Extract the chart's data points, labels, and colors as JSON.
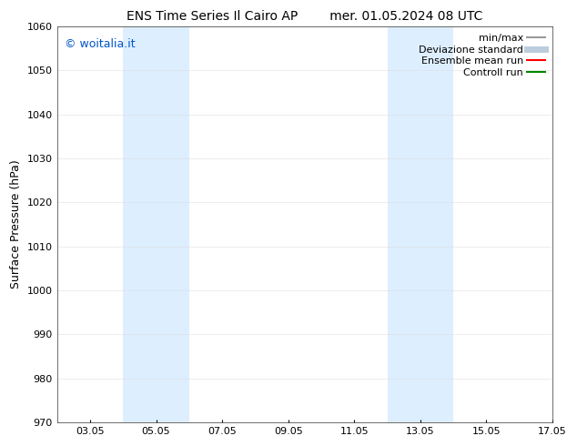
{
  "title_left": "ENS Time Series Il Cairo AP",
  "title_right": "mer. 01.05.2024 08 UTC",
  "ylabel": "Surface Pressure (hPa)",
  "ylim": [
    970,
    1060
  ],
  "yticks": [
    970,
    980,
    990,
    1000,
    1010,
    1020,
    1030,
    1040,
    1050,
    1060
  ],
  "xlim": [
    0,
    15
  ],
  "xtick_labels": [
    "03.05",
    "05.05",
    "07.05",
    "09.05",
    "11.05",
    "13.05",
    "15.05",
    "17.05"
  ],
  "xtick_positions": [
    1.0,
    3.0,
    5.0,
    7.0,
    9.0,
    11.0,
    13.0,
    15.0
  ],
  "shaded_bands": [
    {
      "start": 2.0,
      "end": 4.0,
      "color": "#ddeeff"
    },
    {
      "start": 10.0,
      "end": 12.0,
      "color": "#ddeeff"
    }
  ],
  "watermark_text": "© woitalia.it",
  "watermark_color": "#0055cc",
  "legend_items": [
    {
      "label": "min/max",
      "color": "#999999",
      "lw": 1.5
    },
    {
      "label": "Deviazione standard",
      "color": "#bbccdd",
      "lw": 5
    },
    {
      "label": "Ensemble mean run",
      "color": "#ff0000",
      "lw": 1.5
    },
    {
      "label": "Controll run",
      "color": "#008800",
      "lw": 1.5
    }
  ],
  "background_color": "#ffffff",
  "title_fontsize": 10,
  "ylabel_fontsize": 9,
  "tick_fontsize": 8,
  "legend_fontsize": 8,
  "watermark_fontsize": 9
}
